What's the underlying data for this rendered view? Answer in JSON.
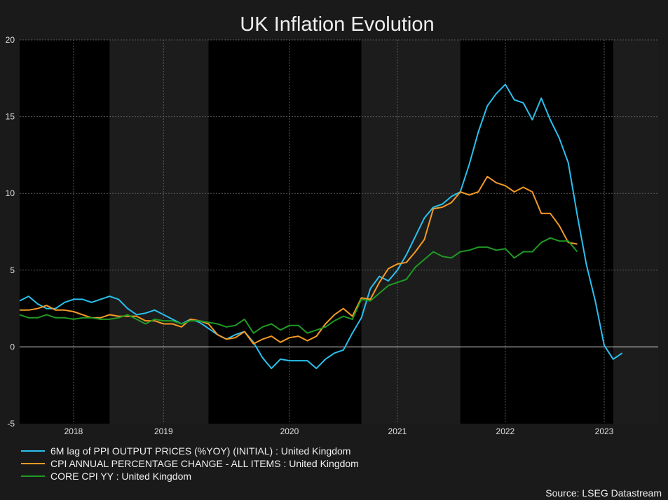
{
  "chart_data": {
    "type": "line",
    "title": "UK Inflation Evolution",
    "source": "Source: LSEG Datastream",
    "ylim": [
      -5,
      20
    ],
    "yticks": [
      -5,
      0,
      5,
      10,
      15,
      20
    ],
    "xlim": [
      "2017-09",
      "2023-08"
    ],
    "year_labels": [
      {
        "year": "2018",
        "date": "2018-03"
      },
      {
        "year": "2019",
        "date": "2019-01"
      },
      {
        "year": "2020",
        "date": "2020-03"
      },
      {
        "year": "2021",
        "date": "2021-03"
      },
      {
        "year": "2022",
        "date": "2022-03"
      },
      {
        "year": "2023",
        "date": "2023-02"
      }
    ],
    "shaded_bands": [
      {
        "start": "2018-07",
        "end": "2019-06"
      },
      {
        "start": "2020-11",
        "end": "2021-10"
      },
      {
        "start": "2023-03",
        "end": "2023-08"
      }
    ],
    "grid": true,
    "zero_line": true,
    "legend_position": "bottom-left",
    "series": [
      {
        "name": "6M lag of PPI OUTPUT PRICES (%YOY) (INITIAL) : United Kingdom",
        "color": "#29c0ee",
        "start": "2017-09",
        "values": [
          3.0,
          3.3,
          2.8,
          2.5,
          2.5,
          2.9,
          3.1,
          3.1,
          2.9,
          3.1,
          3.3,
          3.1,
          2.5,
          2.1,
          2.2,
          2.4,
          2.1,
          1.8,
          1.5,
          1.8,
          1.6,
          1.2,
          0.8,
          0.5,
          0.8,
          1.0,
          0.3,
          -0.7,
          -1.4,
          -0.8,
          -0.9,
          -0.9,
          -0.9,
          -1.4,
          -0.8,
          -0.4,
          -0.2,
          0.9,
          1.9,
          3.8,
          4.6,
          4.3,
          5.0,
          6.0,
          7.2,
          8.4,
          9.1,
          9.3,
          9.8,
          10.1,
          11.9,
          14.0,
          15.7,
          16.5,
          17.1,
          16.1,
          15.9,
          14.8,
          16.2,
          14.8,
          13.6,
          12.0,
          8.6,
          5.4,
          3.0,
          0.1,
          -0.8,
          -0.4
        ]
      },
      {
        "name": "CPI ANNUAL PERCENTAGE CHANGE - ALL ITEMS : United Kingdom",
        "color": "#f59a25",
        "start": "2017-09",
        "values": [
          2.4,
          2.4,
          2.5,
          2.7,
          2.4,
          2.4,
          2.3,
          2.1,
          1.9,
          1.9,
          2.1,
          2.0,
          2.0,
          2.0,
          1.7,
          1.7,
          1.5,
          1.5,
          1.3,
          1.8,
          1.7,
          1.5,
          0.8,
          0.5,
          0.6,
          1.0,
          0.2,
          0.5,
          0.7,
          0.3,
          0.6,
          0.7,
          0.4,
          0.7,
          1.5,
          2.1,
          2.5,
          2.0,
          3.2,
          3.1,
          4.2,
          5.1,
          5.4,
          5.5,
          6.2,
          7.0,
          9.0,
          9.1,
          9.4,
          10.1,
          9.9,
          10.1,
          11.1,
          10.7,
          10.5,
          10.1,
          10.4,
          10.1,
          8.7,
          8.7,
          7.9,
          6.8,
          6.7
        ]
      },
      {
        "name": "CORE CPI YY : United Kingdom",
        "color": "#1f9a23",
        "start": "2017-09",
        "values": [
          2.1,
          1.9,
          1.9,
          2.1,
          1.9,
          1.9,
          1.8,
          1.9,
          1.9,
          1.8,
          1.8,
          1.9,
          2.1,
          1.8,
          1.5,
          1.8,
          1.7,
          1.7,
          1.5,
          1.7,
          1.7,
          1.6,
          1.5,
          1.3,
          1.4,
          1.8,
          0.9,
          1.3,
          1.5,
          1.1,
          1.4,
          1.4,
          0.9,
          1.1,
          1.3,
          1.7,
          2.0,
          1.8,
          3.1,
          3.0,
          3.5,
          4.0,
          4.2,
          4.4,
          5.2,
          5.7,
          6.2,
          5.9,
          5.8,
          6.2,
          6.3,
          6.5,
          6.5,
          6.3,
          6.4,
          5.8,
          6.2,
          6.2,
          6.8,
          7.1,
          6.9,
          6.9,
          6.2
        ]
      }
    ]
  }
}
